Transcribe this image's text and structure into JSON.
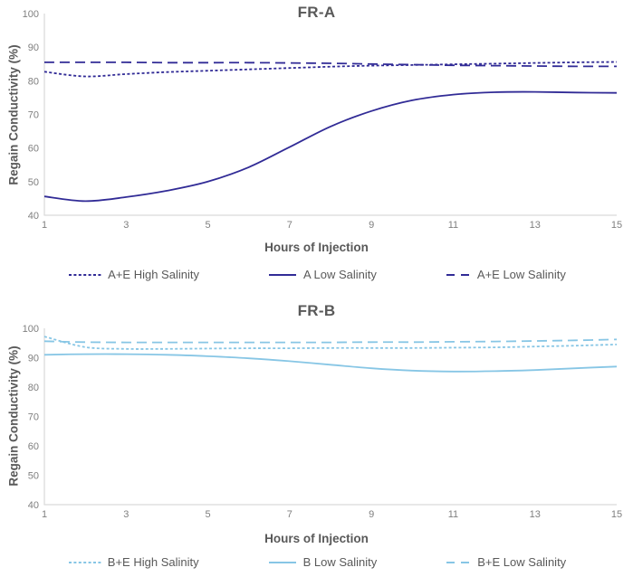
{
  "colors": {
    "fr_a_line": "#312B96",
    "fr_b_line": "#87C6E5",
    "axis_line": "#D9D9D9",
    "tick_label": "#7F7F7F",
    "text_label": "#595959"
  },
  "chart_data": [
    {
      "type": "line",
      "title": "FR-A",
      "xlabel": "Hours of Injection",
      "ylabel": "Regain Conductivity (%)",
      "xlim": [
        1,
        15
      ],
      "ylim": [
        40,
        100
      ],
      "grid": false,
      "legend_position": "bottom",
      "color": "#312B96",
      "x_ticks": [
        "1",
        "3",
        "5",
        "7",
        "9",
        "11",
        "13",
        "15"
      ],
      "y_ticks": [
        "100",
        "90",
        "80",
        "70",
        "60",
        "50",
        "40"
      ],
      "x": [
        1,
        2,
        3,
        4,
        5,
        6,
        7,
        8,
        9,
        10,
        11,
        12,
        13,
        14,
        15
      ],
      "series": [
        {
          "name": "A+E High Salinity",
          "style": "dotted",
          "values": [
            82.7,
            81.3,
            82.0,
            82.6,
            83.0,
            83.4,
            83.8,
            84.2,
            84.5,
            84.7,
            84.9,
            85.1,
            85.3,
            85.5,
            85.6
          ]
        },
        {
          "name": "A Low Salinity",
          "style": "solid",
          "values": [
            45.6,
            44.2,
            45.4,
            47.3,
            50.0,
            54.3,
            60.3,
            66.4,
            71.0,
            74.2,
            75.9,
            76.6,
            76.7,
            76.5,
            76.4
          ]
        },
        {
          "name": "A+E Low Salinity",
          "style": "dashed",
          "values": [
            85.5,
            85.5,
            85.5,
            85.4,
            85.4,
            85.4,
            85.3,
            85.2,
            85.0,
            84.8,
            84.6,
            84.5,
            84.4,
            84.3,
            84.3
          ]
        }
      ]
    },
    {
      "type": "line",
      "title": "FR-B",
      "xlabel": "Hours of Injection",
      "ylabel": "Regain Conductivity (%)",
      "xlim": [
        1,
        15
      ],
      "ylim": [
        40,
        100
      ],
      "grid": false,
      "legend_position": "bottom",
      "color": "#87C6E5",
      "x_ticks": [
        "1",
        "3",
        "5",
        "7",
        "9",
        "11",
        "13",
        "15"
      ],
      "y_ticks": [
        "100",
        "90",
        "80",
        "70",
        "60",
        "50",
        "40"
      ],
      "x": [
        1,
        2,
        3,
        4,
        5,
        6,
        7,
        8,
        9,
        10,
        11,
        12,
        13,
        14,
        15
      ],
      "series": [
        {
          "name": "B+E High Salinity",
          "style": "dotted",
          "values": [
            97.2,
            93.6,
            93.0,
            93.0,
            93.1,
            93.2,
            93.2,
            93.3,
            93.3,
            93.3,
            93.4,
            93.5,
            93.8,
            94.1,
            94.5
          ]
        },
        {
          "name": "B Low Salinity",
          "style": "solid",
          "values": [
            91.0,
            91.2,
            91.2,
            91.0,
            90.5,
            89.8,
            88.8,
            87.6,
            86.4,
            85.6,
            85.3,
            85.4,
            85.8,
            86.4,
            87.0
          ]
        },
        {
          "name": "B+E Low Salinity",
          "style": "dashed",
          "values": [
            95.6,
            95.3,
            95.2,
            95.2,
            95.2,
            95.2,
            95.2,
            95.2,
            95.3,
            95.3,
            95.4,
            95.5,
            95.7,
            95.9,
            96.2
          ]
        }
      ]
    }
  ]
}
